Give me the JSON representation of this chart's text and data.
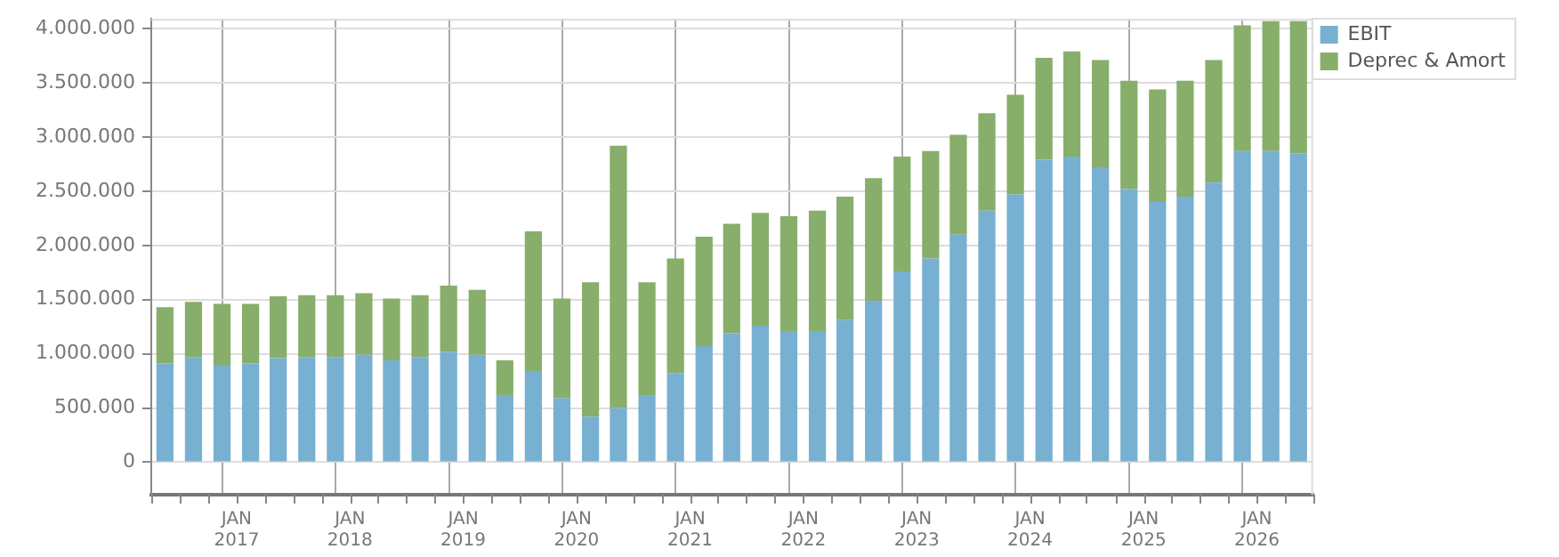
{
  "chart_data": {
    "type": "bar",
    "stacked": true,
    "x": [
      "2016-05-15",
      "2016-08-15",
      "2016-11-15",
      "2017-02-15",
      "2017-05-15",
      "2017-08-15",
      "2017-11-15",
      "2018-02-15",
      "2018-05-15",
      "2018-08-15",
      "2018-11-15",
      "2019-02-15",
      "2019-05-15",
      "2019-08-15",
      "2019-11-15",
      "2020-02-15",
      "2020-05-15",
      "2020-08-15",
      "2020-11-15",
      "2021-02-15",
      "2021-05-15",
      "2021-08-15",
      "2021-11-15",
      "2022-02-15",
      "2022-05-15",
      "2022-08-15",
      "2022-11-15",
      "2023-02-15",
      "2023-05-15",
      "2023-08-15",
      "2023-11-15",
      "2024-02-15",
      "2024-05-15",
      "2024-08-15",
      "2024-11-15",
      "2025-02-15",
      "2025-05-15",
      "2025-08-15",
      "2025-11-15",
      "2026-02-15",
      "2026-05-15"
    ],
    "series": [
      {
        "name": "EBIT",
        "color": "#78b0d2",
        "values": [
          910000,
          970000,
          890000,
          910000,
          960000,
          970000,
          970000,
          990000,
          940000,
          970000,
          1020000,
          990000,
          620000,
          840000,
          590000,
          420000,
          500000,
          620000,
          820000,
          1070000,
          1190000,
          1260000,
          1210000,
          1210000,
          1310000,
          1490000,
          1760000,
          1880000,
          2100000,
          2320000,
          2470000,
          2790000,
          2820000,
          2720000,
          2520000,
          2400000,
          2450000,
          2580000,
          2870000,
          2870000,
          2850000
        ]
      },
      {
        "name": "Deprec & Amort",
        "color": "#87ae6a",
        "values": [
          520000,
          510000,
          570000,
          550000,
          570000,
          570000,
          570000,
          570000,
          570000,
          570000,
          610000,
          600000,
          320000,
          1290000,
          920000,
          1240000,
          2420000,
          1040000,
          1060000,
          1010000,
          1010000,
          1040000,
          1060000,
          1110000,
          1140000,
          1130000,
          1060000,
          990000,
          920000,
          900000,
          920000,
          940000,
          970000,
          990000,
          1000000,
          1040000,
          1070000,
          1130000,
          1160000,
          1200000,
          1220000
        ]
      }
    ],
    "xlim": [
      "2016-04",
      "2026-07"
    ],
    "xticks": [
      {
        "value": "2016-04",
        "label": null
      },
      {
        "value": "2016-07",
        "label": null
      },
      {
        "value": "2016-10",
        "label": null
      },
      {
        "value": "2017-01",
        "label": "JAN\n2017"
      },
      {
        "value": "2017-04",
        "label": null
      },
      {
        "value": "2017-07",
        "label": null
      },
      {
        "value": "2017-10",
        "label": null
      },
      {
        "value": "2018-01",
        "label": "JAN\n2018"
      },
      {
        "value": "2018-04",
        "label": null
      },
      {
        "value": "2018-07",
        "label": null
      },
      {
        "value": "2018-10",
        "label": null
      },
      {
        "value": "2019-01",
        "label": "JAN\n2019"
      },
      {
        "value": "2019-04",
        "label": null
      },
      {
        "value": "2019-07",
        "label": null
      },
      {
        "value": "2019-10",
        "label": null
      },
      {
        "value": "2020-01",
        "label": "JAN\n2020"
      },
      {
        "value": "2020-04",
        "label": null
      },
      {
        "value": "2020-07",
        "label": null
      },
      {
        "value": "2020-10",
        "label": null
      },
      {
        "value": "2021-01",
        "label": "JAN\n2021"
      },
      {
        "value": "2021-04",
        "label": null
      },
      {
        "value": "2021-07",
        "label": null
      },
      {
        "value": "2021-10",
        "label": null
      },
      {
        "value": "2022-01",
        "label": "JAN\n2022"
      },
      {
        "value": "2022-04",
        "label": null
      },
      {
        "value": "2022-07",
        "label": null
      },
      {
        "value": "2022-10",
        "label": null
      },
      {
        "value": "2023-01",
        "label": "JAN\n2023"
      },
      {
        "value": "2023-04",
        "label": null
      },
      {
        "value": "2023-07",
        "label": null
      },
      {
        "value": "2023-10",
        "label": null
      },
      {
        "value": "2024-01",
        "label": "JAN\n2024"
      },
      {
        "value": "2024-04",
        "label": null
      },
      {
        "value": "2024-07",
        "label": null
      },
      {
        "value": "2024-10",
        "label": null
      },
      {
        "value": "2025-01",
        "label": "JAN\n2025"
      },
      {
        "value": "2025-04",
        "label": null
      },
      {
        "value": "2025-07",
        "label": null
      },
      {
        "value": "2025-10",
        "label": null
      },
      {
        "value": "2026-01",
        "label": "JAN\n2026"
      },
      {
        "value": "2026-04",
        "label": null
      },
      {
        "value": "2026-07",
        "label": null
      }
    ],
    "ylim": [
      -300000,
      4090000
    ],
    "yticks": [
      0,
      {
        "value": 500000,
        "label": "500.000"
      },
      {
        "value": 1000000,
        "label": "1.000.000"
      },
      {
        "value": 1500000,
        "label": "1.500.000"
      },
      {
        "value": 2000000,
        "label": "2.000.000"
      },
      {
        "value": 2500000,
        "label": "2.500.000"
      },
      {
        "value": 3000000,
        "label": "3.000.000"
      },
      {
        "value": 3500000,
        "label": "3.500.000"
      },
      {
        "value": 4000000,
        "label": "4.000.000"
      }
    ],
    "grid": true,
    "legend": "top right"
  }
}
